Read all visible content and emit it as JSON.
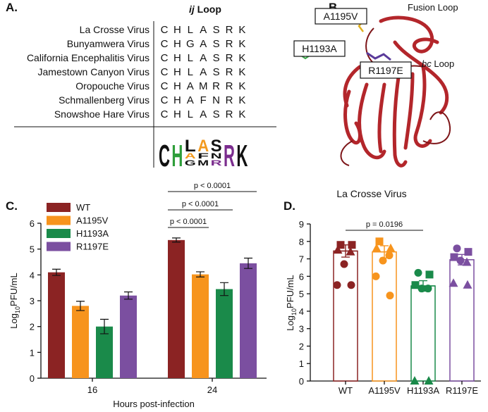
{
  "panel_a": {
    "label": "A.",
    "title": {
      "italic": "ij",
      "rest": " Loop"
    },
    "rows": [
      {
        "name": "La Crosse Virus",
        "residues": [
          "C",
          "H",
          "L",
          "A",
          "S",
          "R",
          "K"
        ]
      },
      {
        "name": "Bunyamwera Virus",
        "residues": [
          "C",
          "H",
          "G",
          "A",
          "S",
          "R",
          "K"
        ]
      },
      {
        "name": "California Encephalitis Virus",
        "residues": [
          "C",
          "H",
          "L",
          "A",
          "S",
          "R",
          "K"
        ]
      },
      {
        "name": "Jamestown Canyon Virus",
        "residues": [
          "C",
          "H",
          "L",
          "A",
          "S",
          "R",
          "K"
        ]
      },
      {
        "name": "Oropouche Virus",
        "residues": [
          "C",
          "H",
          "A",
          "M",
          "R",
          "R",
          "K"
        ]
      },
      {
        "name": "Schmallenberg Virus",
        "residues": [
          "C",
          "H",
          "A",
          "F",
          "N",
          "R",
          "K"
        ]
      },
      {
        "name": "Snowshoe Hare Virus",
        "residues": [
          "C",
          "H",
          "L",
          "A",
          "S",
          "R",
          "K"
        ]
      }
    ],
    "logo": [
      [
        "C"
      ],
      [
        "H"
      ],
      [
        "L",
        "A",
        "G"
      ],
      [
        "A",
        "F",
        "M"
      ],
      [
        "S",
        "N",
        "R"
      ],
      [
        "R"
      ],
      [
        "K"
      ]
    ],
    "logo_colors": {
      "H": "#2e9e3a",
      "A": "#f39a1e",
      "R": "#7b2d8e"
    }
  },
  "panel_b": {
    "label": "B.",
    "fusion_loop": "Fusion Loop",
    "mutations": [
      "A1195V",
      "H1193A",
      "R1197E"
    ],
    "bc_loop": {
      "italic": "bc",
      "rest": " Loop"
    },
    "structure": "La Crosse Virus"
  },
  "chart_data": [
    {
      "type": "bar",
      "label": "C.",
      "categories": [
        "16",
        "24"
      ],
      "x_label": "Hours post-infection",
      "y_label": {
        "base": "Log",
        "sub": "10",
        "rest": "PFU/mL"
      },
      "ylim": [
        0,
        6
      ],
      "yticks": [
        0,
        1,
        2,
        3,
        4,
        5,
        6
      ],
      "legend": "top-left",
      "series": [
        {
          "name": "WT",
          "color": "#8b2323",
          "values": [
            4.1,
            5.35
          ],
          "errors": [
            0.12,
            0.08
          ]
        },
        {
          "name": "A1195V",
          "color": "#f7941d",
          "values": [
            2.8,
            4.02
          ],
          "errors": [
            0.18,
            0.1
          ]
        },
        {
          "name": "H1193A",
          "color": "#1a8a4a",
          "values": [
            2.0,
            3.45
          ],
          "errors": [
            0.28,
            0.25
          ]
        },
        {
          "name": "R1197E",
          "color": "#7b4fa0",
          "values": [
            3.2,
            4.45
          ],
          "errors": [
            0.14,
            0.2
          ]
        }
      ],
      "annotations": [
        "p < 0.0001",
        "p < 0.0001",
        "p < 0.0001"
      ]
    },
    {
      "type": "bar_scatter",
      "label": "D.",
      "categories": [
        "WT",
        "A1195V",
        "H1193A",
        "R1197E"
      ],
      "colors": [
        "#8b2323",
        "#f7941d",
        "#1a8a4a",
        "#7b4fa0"
      ],
      "y_label": {
        "base": "Log",
        "sub": "10",
        "rest": "PFU/mL"
      },
      "ylim": [
        0,
        9
      ],
      "yticks": [
        0,
        1,
        2,
        3,
        4,
        5,
        6,
        7,
        8,
        9
      ],
      "values": [
        7.45,
        7.4,
        5.45,
        6.95
      ],
      "errors": [
        0.35,
        0.35,
        0.3,
        0.3
      ],
      "points": [
        [
          7.8,
          7.8,
          7.5,
          7.4,
          6.7,
          5.5,
          5.5
        ],
        [
          8.0,
          7.6,
          7.6,
          7.2,
          6.9,
          6.0,
          4.9
        ],
        [
          6.2,
          6.1,
          5.5,
          5.3,
          5.3,
          0,
          0
        ],
        [
          7.6,
          7.4,
          7.1,
          6.8,
          6.9,
          5.6,
          5.5
        ]
      ],
      "point_shapes": [
        [
          "square",
          "square",
          "triangle",
          "triangle",
          "circle",
          "circle",
          "circle"
        ],
        [
          "square",
          "triangle",
          "triangle",
          "circle",
          "circle",
          "circle",
          "circle"
        ],
        [
          "circle",
          "square",
          "square",
          "circle",
          "circle",
          "triangle",
          "triangle"
        ],
        [
          "circle",
          "square",
          "square",
          "triangle",
          "circle",
          "triangle",
          "triangle"
        ]
      ],
      "annotations": [
        "p = 0.0196"
      ]
    }
  ]
}
